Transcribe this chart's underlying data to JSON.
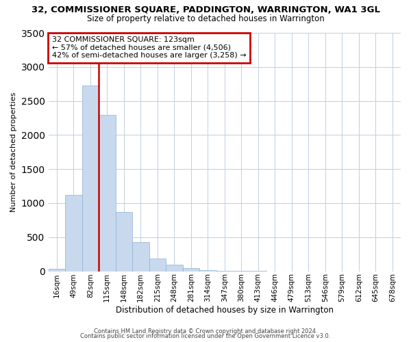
{
  "title": "32, COMMISSIONER SQUARE, PADDINGTON, WARRINGTON, WA1 3GL",
  "subtitle": "Size of property relative to detached houses in Warrington",
  "xlabel": "Distribution of detached houses by size in Warrington",
  "ylabel": "Number of detached properties",
  "bar_color": "#c8d9ee",
  "bar_edge_color": "#8ab0d4",
  "categories": [
    "16sqm",
    "49sqm",
    "82sqm",
    "115sqm",
    "148sqm",
    "182sqm",
    "215sqm",
    "248sqm",
    "281sqm",
    "314sqm",
    "347sqm",
    "380sqm",
    "413sqm",
    "446sqm",
    "479sqm",
    "513sqm",
    "546sqm",
    "579sqm",
    "612sqm",
    "645sqm",
    "678sqm"
  ],
  "values": [
    40,
    1120,
    2730,
    2300,
    870,
    430,
    190,
    100,
    45,
    15,
    5,
    2,
    1,
    0,
    0,
    0,
    0,
    0,
    0,
    0,
    0
  ],
  "ylim": [
    0,
    3500
  ],
  "yticks": [
    0,
    500,
    1000,
    1500,
    2000,
    2500,
    3000,
    3500
  ],
  "property_line_color": "#cc0000",
  "annotation_title": "32 COMMISSIONER SQUARE: 123sqm",
  "annotation_line1": "← 57% of detached houses are smaller (4,506)",
  "annotation_line2": "42% of semi-detached houses are larger (3,258) →",
  "annotation_box_color": "#cc0000",
  "footer1": "Contains HM Land Registry data © Crown copyright and database right 2024.",
  "footer2": "Contains public sector information licensed under the Open Government Licence v3.0.",
  "background_color": "#ffffff",
  "grid_color": "#c0cfe0"
}
